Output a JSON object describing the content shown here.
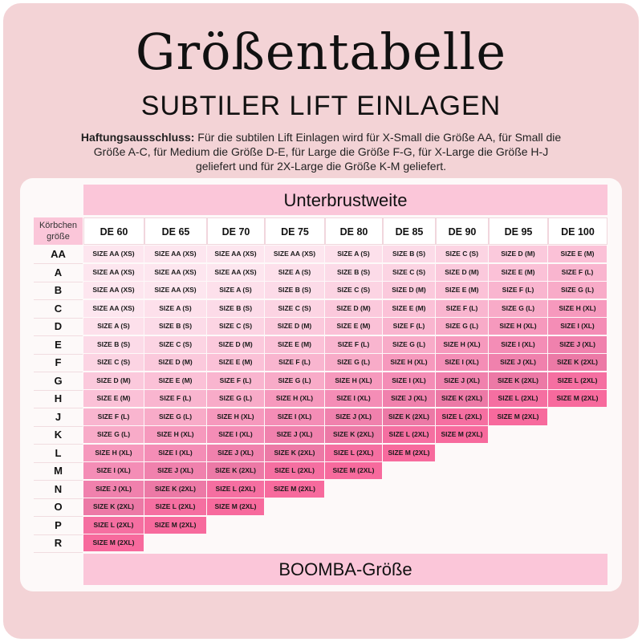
{
  "title": "Größentabelle",
  "subtitle": "SUBTILER LIFT EINLAGEN",
  "disclaimer": {
    "label": "Haftungsausschluss:",
    "text": " Für die subtilen Lift Einlagen wird für X-Small die Größe AA, für Small die Größe A-C, für Medium die Größe D-E, für Large die Größe F-G, für X-Large die Größe H-J geliefert und für 2X-Large die Größe K-M geliefert."
  },
  "table": {
    "top_header": "Unterbrustweite",
    "bottom_header": "BOOMBA-Größe",
    "corner_label": "Körbchen größe",
    "columns": [
      "DE 60",
      "DE 65",
      "DE 70",
      "DE 75",
      "DE 80",
      "DE 85",
      "DE 90",
      "DE 95",
      "DE 100"
    ],
    "rows": [
      {
        "cup": "AA",
        "cells": [
          "SIZE AA (XS)",
          "SIZE AA (XS)",
          "SIZE AA (XS)",
          "SIZE AA (XS)",
          "SIZE A (S)",
          "SIZE B (S)",
          "SIZE C (S)",
          "SIZE D (M)",
          "SIZE E (M)"
        ]
      },
      {
        "cup": "A",
        "cells": [
          "SIZE AA (XS)",
          "SIZE AA (XS)",
          "SIZE AA (XS)",
          "SIZE A (S)",
          "SIZE B (S)",
          "SIZE C (S)",
          "SIZE D (M)",
          "SIZE E (M)",
          "SIZE F (L)"
        ]
      },
      {
        "cup": "B",
        "cells": [
          "SIZE AA (XS)",
          "SIZE AA (XS)",
          "SIZE A (S)",
          "SIZE B (S)",
          "SIZE C (S)",
          "SIZE D (M)",
          "SIZE E (M)",
          "SIZE F (L)",
          "SIZE G (L)"
        ]
      },
      {
        "cup": "C",
        "cells": [
          "SIZE AA (XS)",
          "SIZE A (S)",
          "SIZE B (S)",
          "SIZE C (S)",
          "SIZE D (M)",
          "SIZE E (M)",
          "SIZE F (L)",
          "SIZE G (L)",
          "SIZE H (XL)"
        ]
      },
      {
        "cup": "D",
        "cells": [
          "SIZE A (S)",
          "SIZE B (S)",
          "SIZE C (S)",
          "SIZE D (M)",
          "SIZE E (M)",
          "SIZE F (L)",
          "SIZE G (L)",
          "SIZE H (XL)",
          "SIZE I (XL)"
        ]
      },
      {
        "cup": "E",
        "cells": [
          "SIZE B (S)",
          "SIZE C (S)",
          "SIZE D (M)",
          "SIZE E (M)",
          "SIZE F (L)",
          "SIZE G (L)",
          "SIZE H (XL)",
          "SIZE I (XL)",
          "SIZE J (XL)"
        ]
      },
      {
        "cup": "F",
        "cells": [
          "SIZE C (S)",
          "SIZE D (M)",
          "SIZE E (M)",
          "SIZE F (L)",
          "SIZE G (L)",
          "SIZE H (XL)",
          "SIZE I (XL)",
          "SIZE J (XL)",
          "SIZE K (2XL)"
        ]
      },
      {
        "cup": "G",
        "cells": [
          "SIZE D (M)",
          "SIZE E (M)",
          "SIZE F (L)",
          "SIZE G (L)",
          "SIZE H (XL)",
          "SIZE I (XL)",
          "SIZE J (XL)",
          "SIZE K (2XL)",
          "SIZE L (2XL)"
        ]
      },
      {
        "cup": "H",
        "cells": [
          "SIZE E (M)",
          "SIZE F (L)",
          "SIZE G (L)",
          "SIZE H (XL)",
          "SIZE I (XL)",
          "SIZE J (XL)",
          "SIZE K (2XL)",
          "SIZE L (2XL)",
          "SIZE M (2XL)"
        ]
      },
      {
        "cup": "J",
        "cells": [
          "SIZE F (L)",
          "SIZE G (L)",
          "SIZE H (XL)",
          "SIZE I (XL)",
          "SIZE J (XL)",
          "SIZE K (2XL)",
          "SIZE L (2XL)",
          "SIZE M (2XL)"
        ]
      },
      {
        "cup": "K",
        "cells": [
          "SIZE G (L)",
          "SIZE H (XL)",
          "SIZE I (XL)",
          "SIZE J (XL)",
          "SIZE K (2XL)",
          "SIZE L (2XL)",
          "SIZE M (2XL)"
        ]
      },
      {
        "cup": "L",
        "cells": [
          "SIZE H (XL)",
          "SIZE I (XL)",
          "SIZE J (XL)",
          "SIZE K (2XL)",
          "SIZE L (2XL)",
          "SIZE M (2XL)"
        ]
      },
      {
        "cup": "M",
        "cells": [
          "SIZE I (XL)",
          "SIZE J (XL)",
          "SIZE K (2XL)",
          "SIZE L (2XL)",
          "SIZE M (2XL)"
        ]
      },
      {
        "cup": "N",
        "cells": [
          "SIZE J (XL)",
          "SIZE K (2XL)",
          "SIZE L (2XL)",
          "SIZE M (2XL)"
        ]
      },
      {
        "cup": "O",
        "cells": [
          "SIZE K (2XL)",
          "SIZE L (2XL)",
          "SIZE M (2XL)"
        ]
      },
      {
        "cup": "P",
        "cells": [
          "SIZE L (2XL)",
          "SIZE M (2XL)"
        ]
      },
      {
        "cup": "R",
        "cells": [
          "SIZE M (2XL)"
        ]
      }
    ]
  },
  "colors": {
    "background": "#f3d3d6",
    "band": "#fbc6d9",
    "size_scale": {
      "AA": "#fde6ef",
      "A": "#fde0eb",
      "B": "#fcdbe8",
      "C": "#fcd4e3",
      "D": "#fbc9dc",
      "E": "#fbc1d7",
      "F": "#f9b5cf",
      "G": "#f8abc8",
      "H": "#f699bd",
      "I": "#f48db6",
      "J": "#f081ad",
      "K": "#ec79a6",
      "L": "#f56fa1",
      "M": "#f76a9d"
    }
  }
}
